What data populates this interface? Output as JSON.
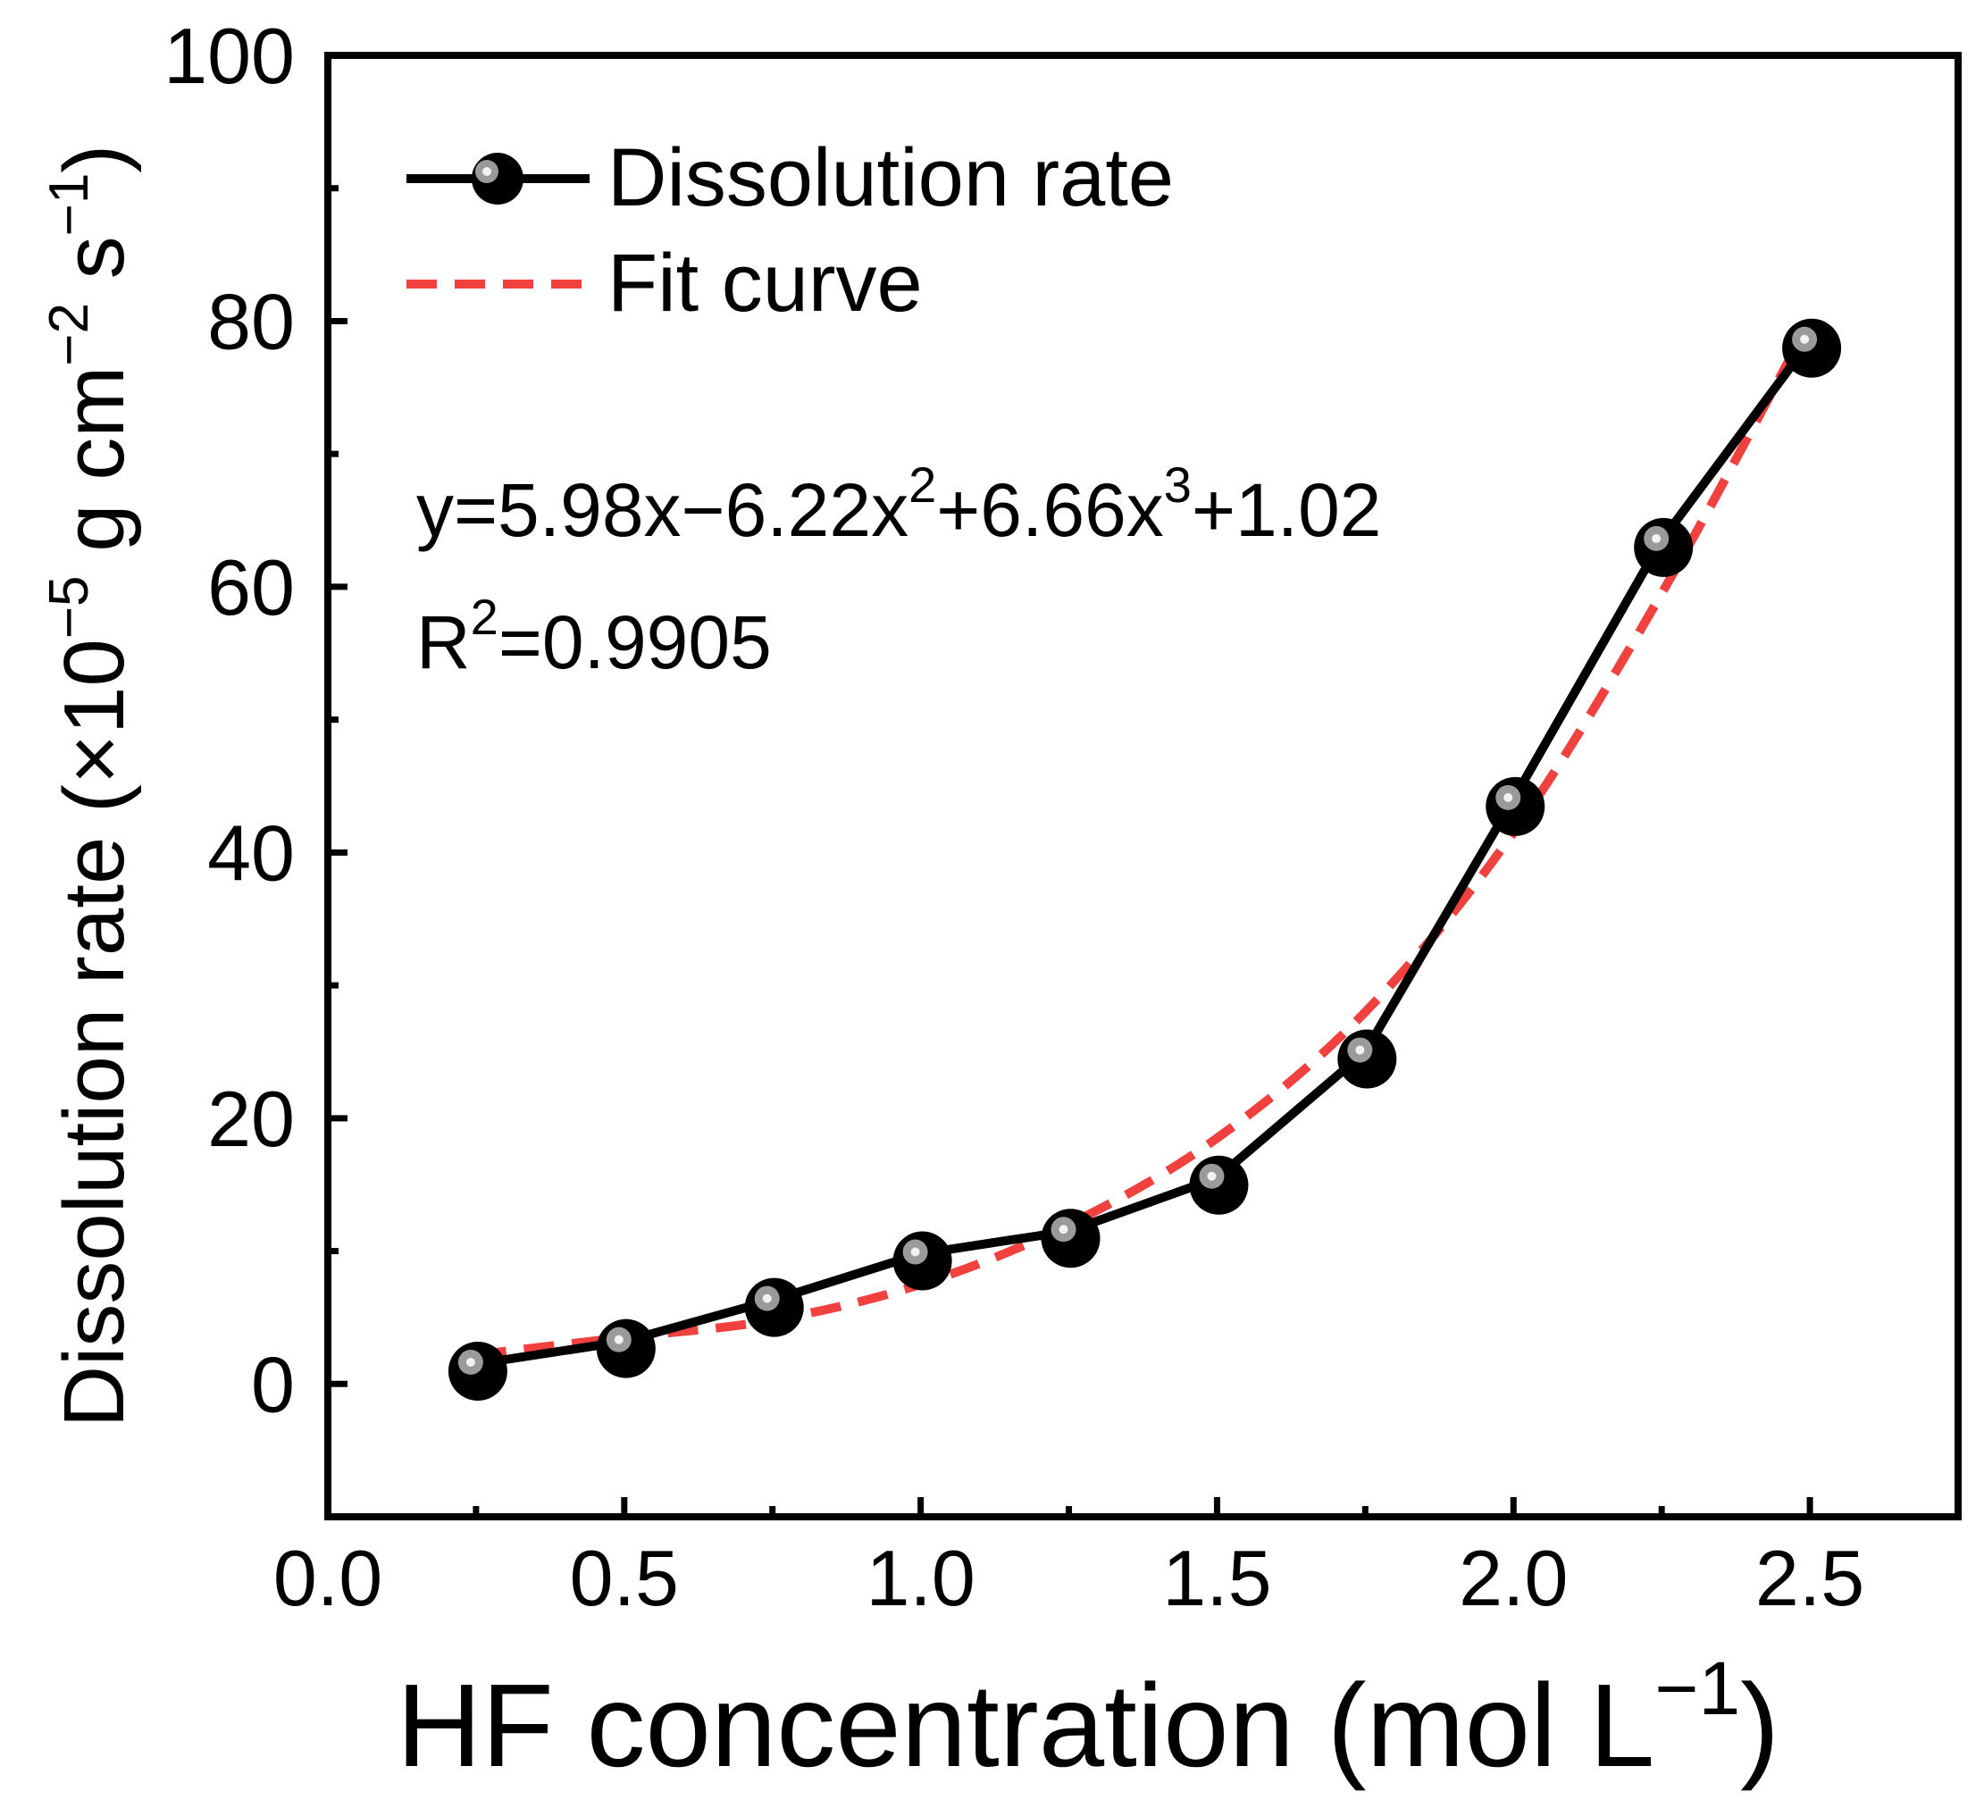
{
  "chart_data": {
    "type": "line",
    "title": "",
    "xlabel": "HF concentration (mol L",
    "xlabel_unit_exp": "−1",
    "xlabel_close": ")",
    "ylabel": {
      "prefix": "Dissolution rate (×10",
      "exp1": "−5",
      "mid": " g cm",
      "exp2": "−2",
      "mid2": " s",
      "exp3": "−1",
      "suffix": ")"
    },
    "xlim": [
      0.0,
      2.75
    ],
    "ylim": [
      -10,
      100
    ],
    "x_ticks": [
      0.0,
      0.5,
      1.0,
      1.5,
      2.0,
      2.5
    ],
    "x_tick_labels": [
      "0.0",
      "0.5",
      "1.0",
      "1.5",
      "2.0",
      "2.5"
    ],
    "y_ticks": [
      0,
      20,
      40,
      60,
      80,
      100
    ],
    "y_tick_labels": [
      "0",
      "20",
      "40",
      "60",
      "80",
      "100"
    ],
    "grid": false,
    "legend_position": "top-left",
    "series": [
      {
        "name": "Dissolution rate",
        "style": "solid-marker",
        "color": "#000000",
        "x": [
          0.25,
          0.5,
          0.75,
          1.0,
          1.25,
          1.5,
          1.75,
          2.0,
          2.25,
          2.5
        ],
        "values": [
          1.5,
          3.2,
          6.3,
          9.8,
          11.5,
          15.5,
          25.0,
          44.0,
          63.5,
          78.5
        ]
      },
      {
        "name": "Fit curve",
        "style": "dashed",
        "color": "#f0413e",
        "x": [
          0.25,
          0.5,
          0.75,
          1.0,
          1.25,
          1.5,
          1.75,
          2.0,
          2.25,
          2.5
        ],
        "values": [
          2.2,
          3.5,
          4.8,
          7.5,
          12.0,
          18.5,
          28.0,
          41.5,
          59.5,
          80.0
        ]
      }
    ],
    "annotations": {
      "equation": {
        "p1": "y=5.98x−6.22x",
        "e1": "2",
        "p2": "+6.66x",
        "e2": "3",
        "p3": "+1.02"
      },
      "r2": {
        "p1": "R",
        "e1": "2",
        "p2": "=0.9905"
      }
    }
  }
}
